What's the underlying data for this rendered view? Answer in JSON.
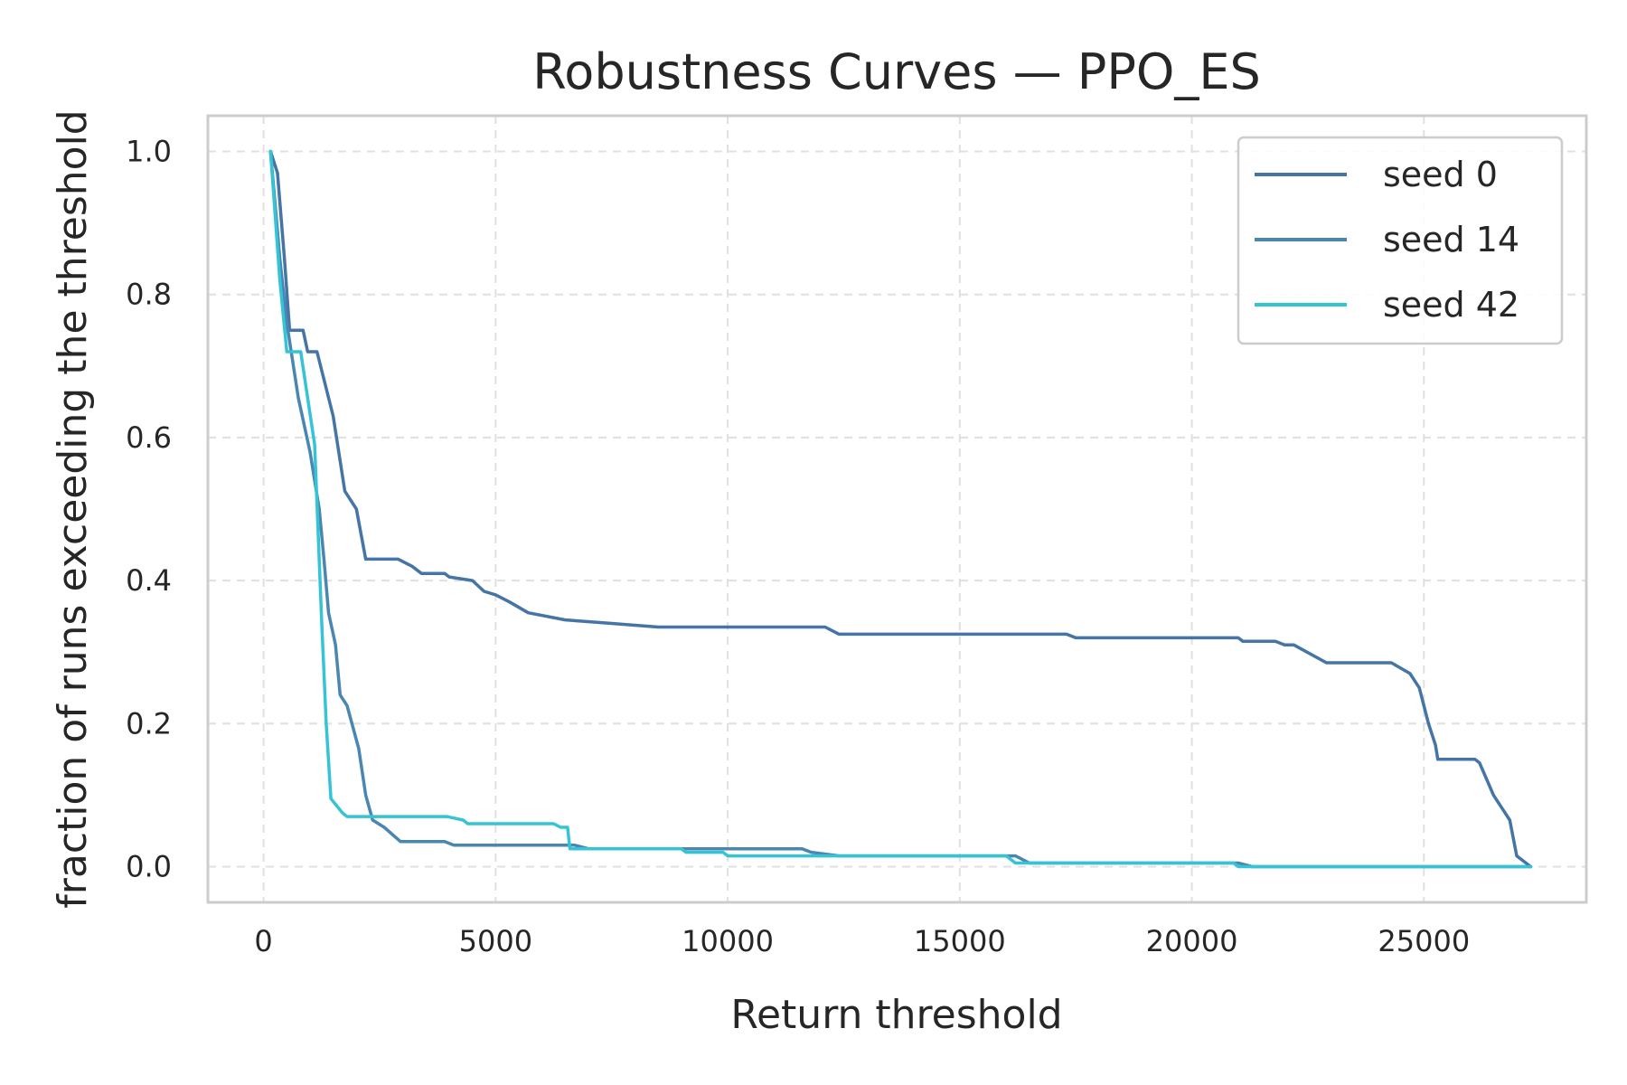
{
  "chart_data": {
    "type": "line",
    "title": "Robustness Curves — PPO_ES",
    "xlabel": "Return threshold",
    "ylabel": "fraction of runs exceeding the threshold",
    "xlim": [
      -1200,
      28500
    ],
    "ylim": [
      -0.05,
      1.05
    ],
    "xticks": [
      0,
      5000,
      10000,
      15000,
      20000,
      25000
    ],
    "yticks": [
      0.0,
      0.2,
      0.4,
      0.6,
      0.8,
      1.0
    ],
    "xtick_labels": [
      "0",
      "5000",
      "10000",
      "15000",
      "20000",
      "25000"
    ],
    "ytick_labels": [
      "0.0",
      "0.2",
      "0.4",
      "0.6",
      "0.8",
      "1.0"
    ],
    "grid": true,
    "legend_position": "top-right",
    "series": [
      {
        "name": "seed 0",
        "color": "#4574a6",
        "x": [
          150,
          300,
          450,
          560,
          850,
          950,
          1150,
          1500,
          1750,
          2000,
          2200,
          2900,
          3200,
          3400,
          3900,
          4000,
          4500,
          4750,
          5000,
          5300,
          5700,
          6500,
          7500,
          8500,
          12100,
          12400,
          17300,
          17500,
          21000,
          21100,
          21800,
          22000,
          22200,
          22900,
          24300,
          24700,
          24900,
          25100,
          25250,
          25300,
          25700,
          26100,
          26200,
          26500,
          26700,
          26850,
          27000,
          27300
        ],
        "y": [
          1.0,
          0.97,
          0.85,
          0.75,
          0.75,
          0.72,
          0.72,
          0.63,
          0.525,
          0.5,
          0.43,
          0.43,
          0.42,
          0.41,
          0.41,
          0.405,
          0.4,
          0.385,
          0.38,
          0.37,
          0.355,
          0.345,
          0.34,
          0.335,
          0.335,
          0.325,
          0.325,
          0.32,
          0.32,
          0.315,
          0.315,
          0.31,
          0.31,
          0.285,
          0.285,
          0.27,
          0.25,
          0.2,
          0.17,
          0.15,
          0.15,
          0.15,
          0.145,
          0.1,
          0.08,
          0.065,
          0.015,
          0.0
        ]
      },
      {
        "name": "seed 14",
        "color": "#4a86b2",
        "x": [
          150,
          350,
          500,
          750,
          1000,
          1200,
          1300,
          1400,
          1550,
          1650,
          1800,
          2050,
          2200,
          2350,
          2600,
          2950,
          3900,
          4100,
          6700,
          7000,
          9000,
          11600,
          11800,
          12400,
          16200,
          16500,
          21000,
          21300,
          27300
        ],
        "y": [
          1.0,
          0.85,
          0.76,
          0.655,
          0.58,
          0.5,
          0.43,
          0.355,
          0.31,
          0.24,
          0.225,
          0.165,
          0.1,
          0.065,
          0.055,
          0.035,
          0.035,
          0.03,
          0.03,
          0.025,
          0.025,
          0.025,
          0.02,
          0.015,
          0.015,
          0.005,
          0.005,
          0.0,
          0.0
        ]
      },
      {
        "name": "seed 42",
        "color": "#35c4d6",
        "x": [
          150,
          350,
          500,
          800,
          1100,
          1250,
          1350,
          1450,
          1700,
          1800,
          3950,
          4300,
          4400,
          6250,
          6400,
          6550,
          6600,
          6700,
          9000,
          9100,
          9900,
          10000,
          16000,
          16200,
          20900,
          21000,
          27300
        ],
        "y": [
          1.0,
          0.82,
          0.72,
          0.72,
          0.59,
          0.345,
          0.2,
          0.095,
          0.075,
          0.07,
          0.07,
          0.065,
          0.06,
          0.06,
          0.055,
          0.055,
          0.025,
          0.025,
          0.025,
          0.02,
          0.02,
          0.015,
          0.015,
          0.005,
          0.005,
          0.0,
          0.0
        ]
      }
    ]
  }
}
